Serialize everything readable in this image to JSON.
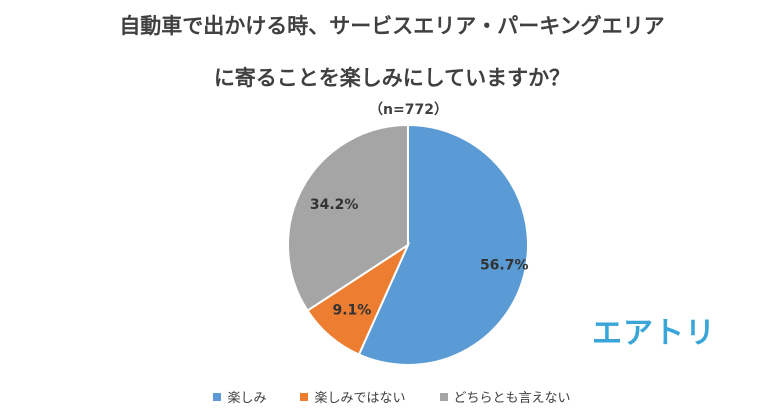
{
  "colors": {
    "blue": "#5b9bd5",
    "orange": "#ed7d31",
    "gray": "#a5a5a5",
    "brand": "#3aa5d8"
  },
  "brand": {
    "logo_text": "エアトリ"
  },
  "chart_data": {
    "type": "pie",
    "title_line1": "自動車で出かける時、サービスエリア・パーキングエリア",
    "title_line2": "に寄ることを楽しみにしていますか？",
    "subtitle": "（n=772）",
    "slices": [
      {
        "name": "楽しみ",
        "value": 56.7,
        "label": "56.7%",
        "color": "#5b9bd5"
      },
      {
        "name": "楽しみではない",
        "value": 9.1,
        "label": "9.1%",
        "color": "#ed7d31"
      },
      {
        "name": "どちらとも言えない",
        "value": 34.2,
        "label": "34.2%",
        "color": "#a5a5a5"
      }
    ],
    "legend_position": "bottom"
  }
}
